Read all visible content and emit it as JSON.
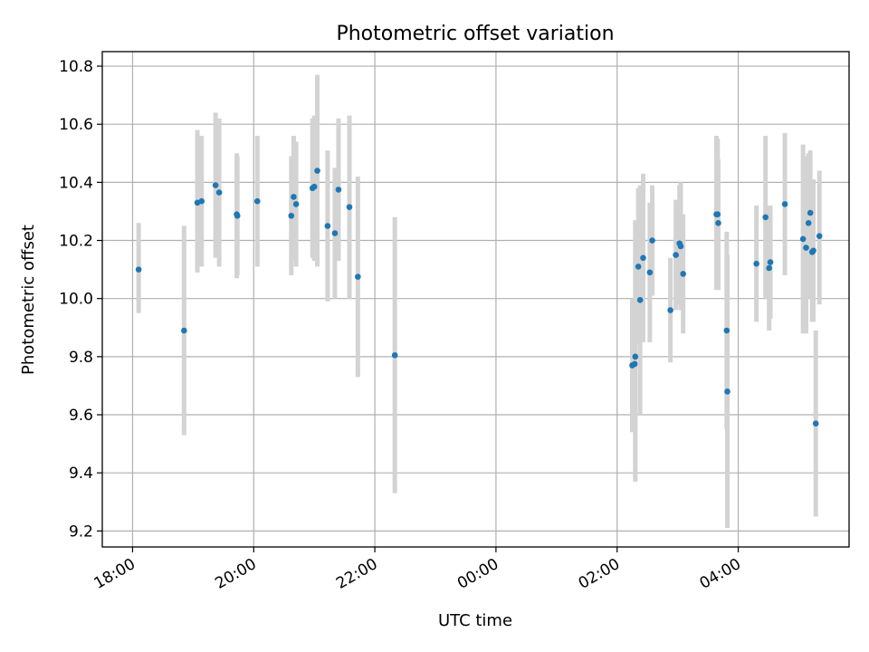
{
  "chart_data": {
    "type": "scatter",
    "title": "Photometric offset variation",
    "xlabel": "UTC time",
    "ylabel": "Photometric offset",
    "grid": true,
    "xlim": [
      -6.5,
      5.83
    ],
    "ylim": [
      9.145,
      10.85
    ],
    "x_unit": "hours relative to 00:00 UTC",
    "xticks": [
      {
        "value": -6,
        "label": "18:00"
      },
      {
        "value": -4,
        "label": "20:00"
      },
      {
        "value": -2,
        "label": "22:00"
      },
      {
        "value": 0,
        "label": "00:00"
      },
      {
        "value": 2,
        "label": "02:00"
      },
      {
        "value": 4,
        "label": "04:00"
      }
    ],
    "yticks": [
      {
        "value": 9.2,
        "label": "9.2"
      },
      {
        "value": 9.4,
        "label": "9.4"
      },
      {
        "value": 9.6,
        "label": "9.6"
      },
      {
        "value": 9.8,
        "label": "9.8"
      },
      {
        "value": 10.0,
        "label": "10.0"
      },
      {
        "value": 10.2,
        "label": "10.2"
      },
      {
        "value": 10.4,
        "label": "10.4"
      },
      {
        "value": 10.6,
        "label": "10.6"
      },
      {
        "value": 10.8,
        "label": "10.8"
      }
    ],
    "marker_color": "#1f77b4",
    "errorbar_color": "#d3d3d3",
    "points": [
      {
        "x": -5.9,
        "y": 10.1,
        "lo": 9.95,
        "hi": 10.26
      },
      {
        "x": -5.15,
        "y": 9.89,
        "lo": 9.53,
        "hi": 10.25
      },
      {
        "x": -4.93,
        "y": 10.33,
        "lo": 10.09,
        "hi": 10.58
      },
      {
        "x": -4.86,
        "y": 10.335,
        "lo": 10.11,
        "hi": 10.56
      },
      {
        "x": -4.63,
        "y": 10.39,
        "lo": 10.14,
        "hi": 10.64
      },
      {
        "x": -4.57,
        "y": 10.365,
        "lo": 10.11,
        "hi": 10.62
      },
      {
        "x": -4.28,
        "y": 10.29,
        "lo": 10.07,
        "hi": 10.5
      },
      {
        "x": -4.27,
        "y": 10.285,
        "lo": 10.08,
        "hi": 10.49
      },
      {
        "x": -3.94,
        "y": 10.335,
        "lo": 10.11,
        "hi": 10.56
      },
      {
        "x": -3.38,
        "y": 10.285,
        "lo": 10.08,
        "hi": 10.49
      },
      {
        "x": -3.34,
        "y": 10.35,
        "lo": 10.13,
        "hi": 10.56
      },
      {
        "x": -3.3,
        "y": 10.325,
        "lo": 10.11,
        "hi": 10.54
      },
      {
        "x": -3.03,
        "y": 10.38,
        "lo": 10.14,
        "hi": 10.62
      },
      {
        "x": -3.0,
        "y": 10.385,
        "lo": 10.13,
        "hi": 10.63
      },
      {
        "x": -2.95,
        "y": 10.44,
        "lo": 10.11,
        "hi": 10.77
      },
      {
        "x": -2.78,
        "y": 10.25,
        "lo": 9.99,
        "hi": 10.51
      },
      {
        "x": -2.66,
        "y": 10.225,
        "lo": 10.0,
        "hi": 10.45
      },
      {
        "x": -2.6,
        "y": 10.375,
        "lo": 10.13,
        "hi": 10.62
      },
      {
        "x": -2.42,
        "y": 10.315,
        "lo": 10.0,
        "hi": 10.63
      },
      {
        "x": -2.28,
        "y": 10.075,
        "lo": 9.73,
        "hi": 10.42
      },
      {
        "x": -1.67,
        "y": 9.805,
        "lo": 9.33,
        "hi": 10.28
      },
      {
        "x": 2.25,
        "y": 9.77,
        "lo": 9.54,
        "hi": 10.0
      },
      {
        "x": 2.29,
        "y": 9.775,
        "lo": 9.54,
        "hi": 10.0
      },
      {
        "x": 2.3,
        "y": 9.8,
        "lo": 9.37,
        "hi": 10.27
      },
      {
        "x": 2.35,
        "y": 10.11,
        "lo": 9.84,
        "hi": 10.38
      },
      {
        "x": 2.38,
        "y": 9.995,
        "lo": 9.6,
        "hi": 10.39
      },
      {
        "x": 2.43,
        "y": 10.14,
        "lo": 9.85,
        "hi": 10.43
      },
      {
        "x": 2.54,
        "y": 10.09,
        "lo": 9.85,
        "hi": 10.33
      },
      {
        "x": 2.58,
        "y": 10.2,
        "lo": 10.01,
        "hi": 10.39
      },
      {
        "x": 2.88,
        "y": 9.96,
        "lo": 9.78,
        "hi": 10.14
      },
      {
        "x": 2.97,
        "y": 10.15,
        "lo": 9.96,
        "hi": 10.34
      },
      {
        "x": 3.03,
        "y": 10.19,
        "lo": 9.98,
        "hi": 10.39
      },
      {
        "x": 3.05,
        "y": 10.18,
        "lo": 9.96,
        "hi": 10.4
      },
      {
        "x": 3.09,
        "y": 10.085,
        "lo": 9.88,
        "hi": 10.29
      },
      {
        "x": 3.64,
        "y": 10.29,
        "lo": 10.03,
        "hi": 10.56
      },
      {
        "x": 3.66,
        "y": 10.29,
        "lo": 10.03,
        "hi": 10.55
      },
      {
        "x": 3.67,
        "y": 10.26,
        "lo": 10.03,
        "hi": 10.48
      },
      {
        "x": 3.81,
        "y": 9.89,
        "lo": 9.55,
        "hi": 10.23
      },
      {
        "x": 3.82,
        "y": 9.68,
        "lo": 9.21,
        "hi": 10.15
      },
      {
        "x": 4.3,
        "y": 10.12,
        "lo": 9.92,
        "hi": 10.32
      },
      {
        "x": 4.45,
        "y": 10.28,
        "lo": 10.0,
        "hi": 10.56
      },
      {
        "x": 4.51,
        "y": 10.105,
        "lo": 9.89,
        "hi": 10.32
      },
      {
        "x": 4.53,
        "y": 10.125,
        "lo": 9.93,
        "hi": 10.32
      },
      {
        "x": 4.77,
        "y": 10.325,
        "lo": 10.08,
        "hi": 10.57
      },
      {
        "x": 5.07,
        "y": 10.205,
        "lo": 9.88,
        "hi": 10.53
      },
      {
        "x": 5.12,
        "y": 10.175,
        "lo": 9.88,
        "hi": 10.49
      },
      {
        "x": 5.16,
        "y": 10.26,
        "lo": 10.0,
        "hi": 10.5
      },
      {
        "x": 5.19,
        "y": 10.295,
        "lo": 10.08,
        "hi": 10.51
      },
      {
        "x": 5.22,
        "y": 10.16,
        "lo": 9.92,
        "hi": 10.4
      },
      {
        "x": 5.24,
        "y": 10.165,
        "lo": 9.92,
        "hi": 10.41
      },
      {
        "x": 5.28,
        "y": 9.57,
        "lo": 9.25,
        "hi": 9.89
      },
      {
        "x": 5.34,
        "y": 10.215,
        "lo": 9.98,
        "hi": 10.44
      }
    ]
  }
}
